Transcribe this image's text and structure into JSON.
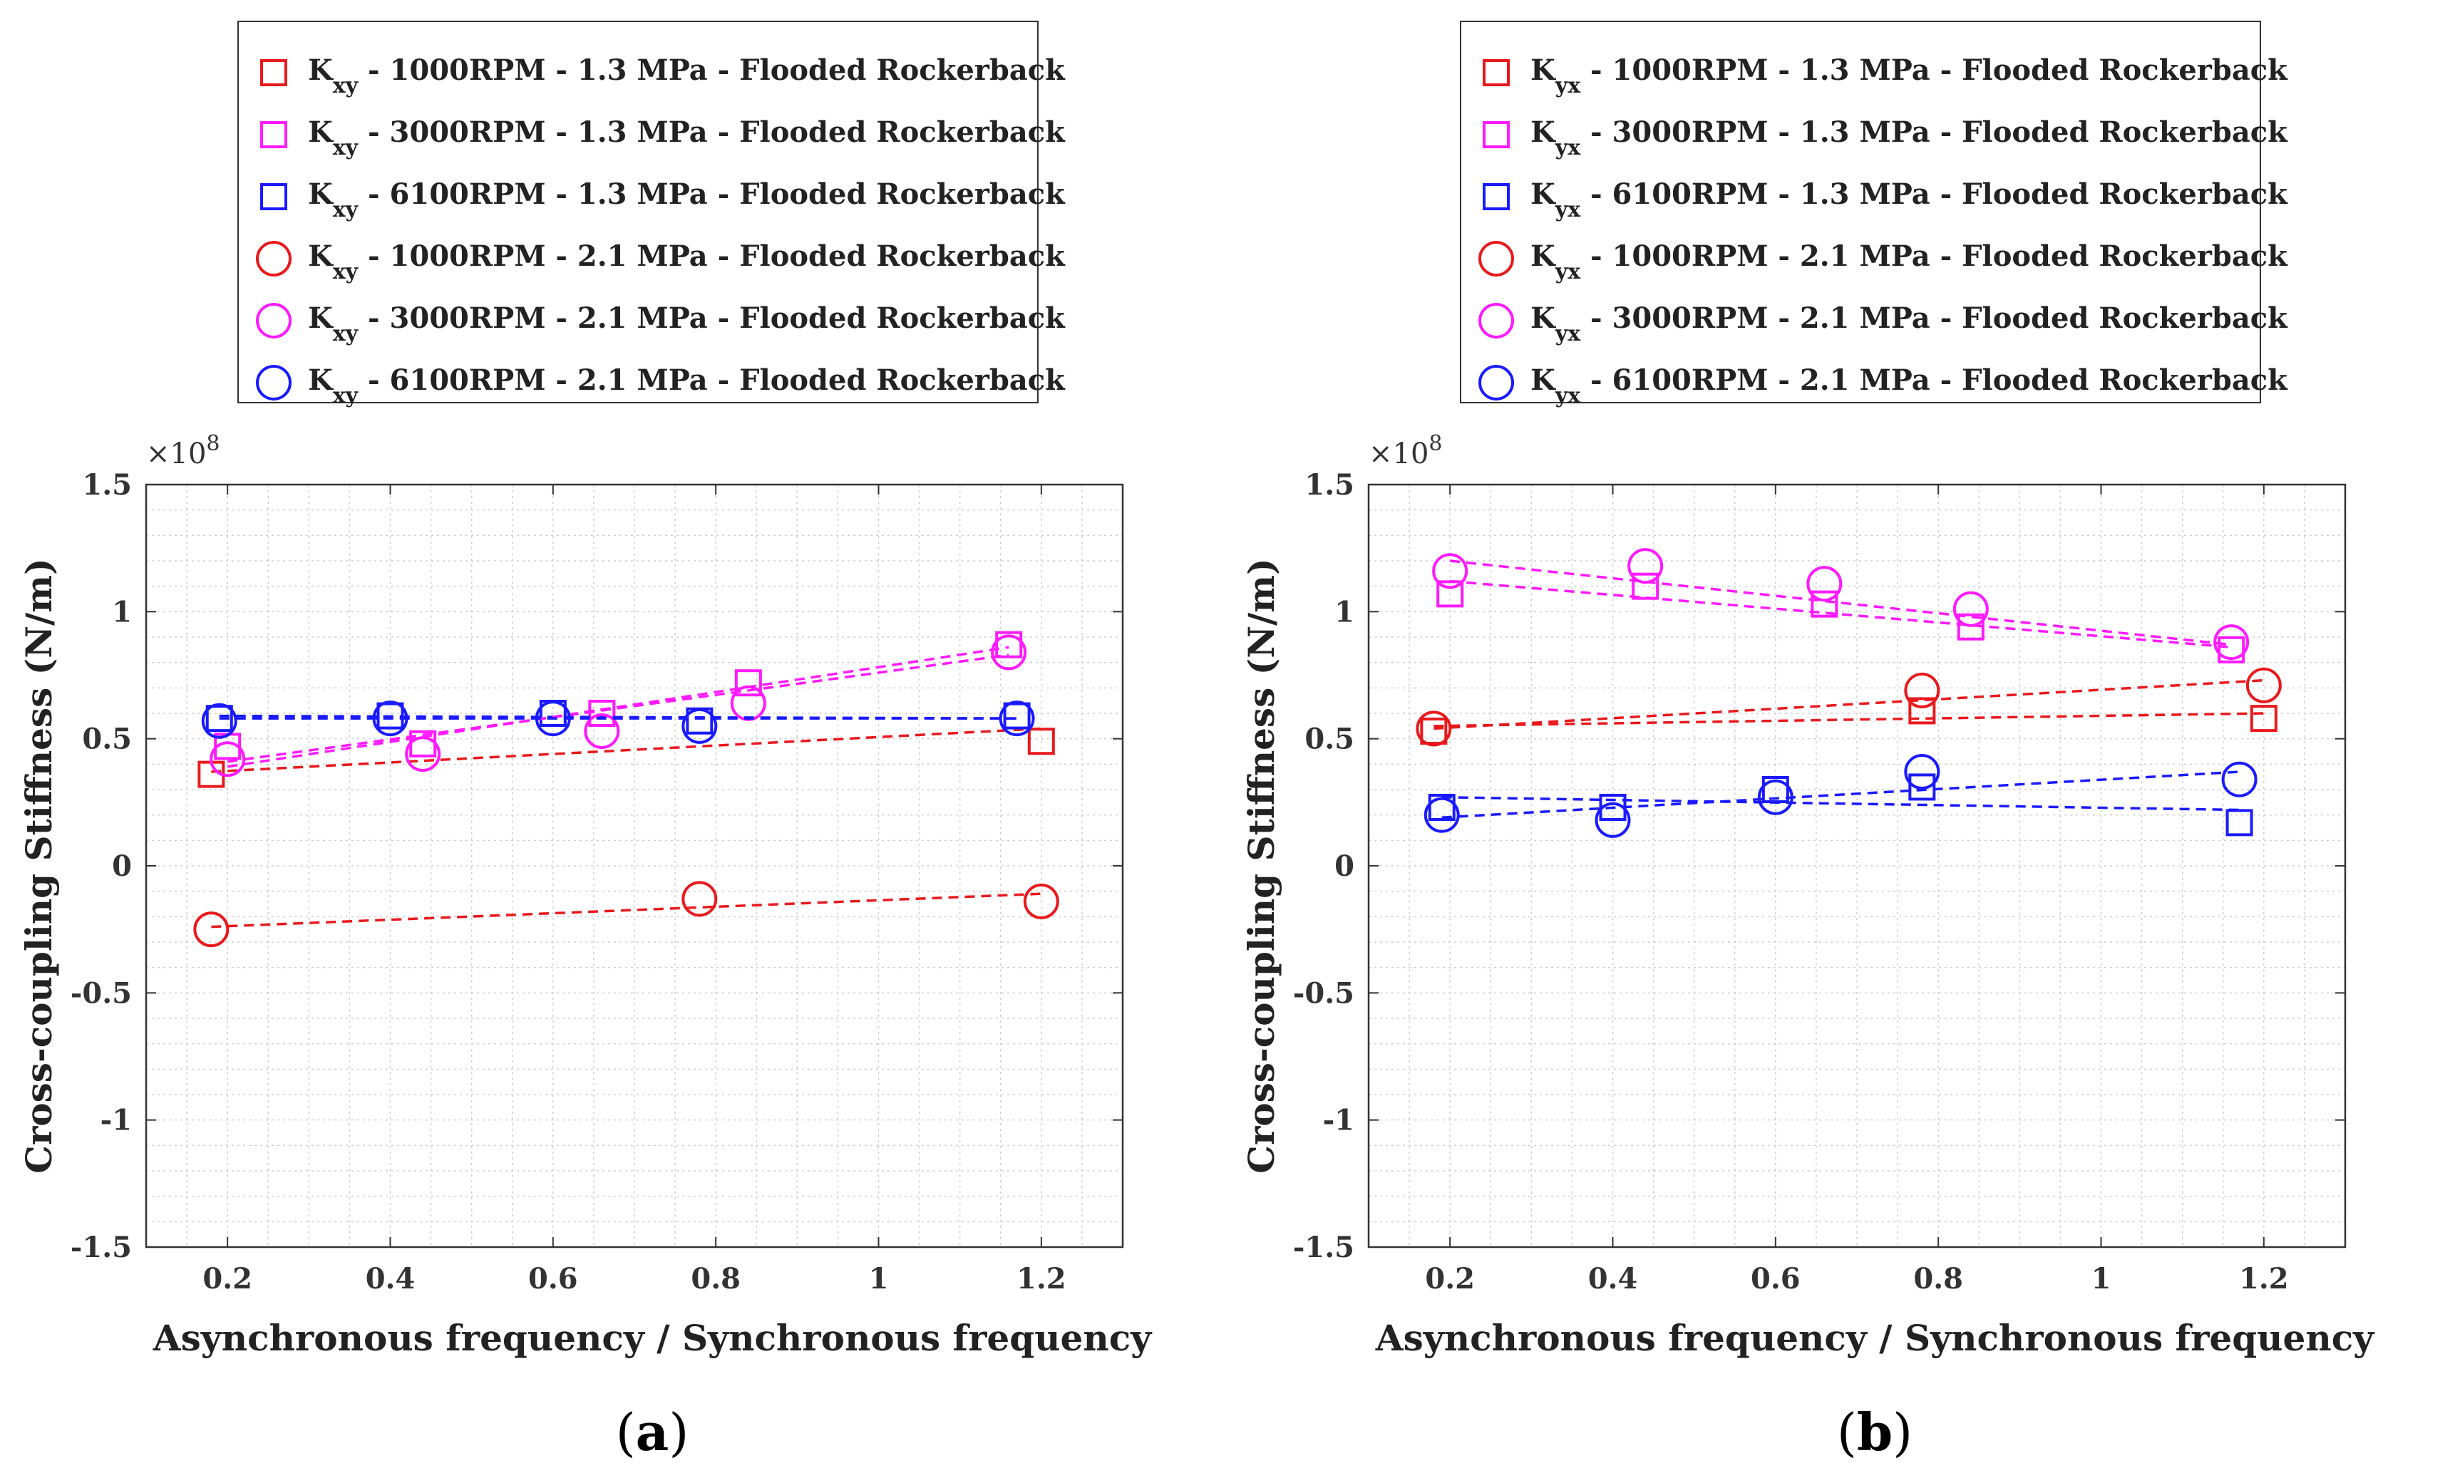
{
  "chart_data": [
    {
      "type": "scatter",
      "panel_label": "a",
      "xlabel": "Asynchronous frequency / Synchronous frequency",
      "ylabel": "Cross-coupling Stiffness (N/m)",
      "y_multiplier": "8",
      "xlim": [
        0.1,
        1.3
      ],
      "ylim": [
        -1.5,
        1.5
      ],
      "xticks": [
        "0.2",
        "0.4",
        "0.6",
        "0.8",
        "1",
        "1.2"
      ],
      "xtick_values": [
        0.2,
        0.4,
        0.6,
        0.8,
        1.0,
        1.2
      ],
      "yticks": [
        "1.5",
        "1",
        "0.5",
        "0",
        "-0.5",
        "-1",
        "-1.5"
      ],
      "ytick_values": [
        1.5,
        1.0,
        0.5,
        0.0,
        -0.5,
        -1.0,
        -1.5
      ],
      "grid": true,
      "legend_position": "top",
      "series": [
        {
          "name": "1000RPM - 1.3 MPa - Flooded Rockerback",
          "symbol": "K",
          "sub": "xy",
          "marker": "square",
          "color": "#e8191d",
          "x": [
            0.18,
            1.2
          ],
          "y": [
            0.36,
            0.49
          ],
          "fit": [
            0.37,
            0.54
          ]
        },
        {
          "name": "3000RPM - 1.3 MPa - Flooded Rockerback",
          "symbol": "K",
          "sub": "xy",
          "marker": "square",
          "color": "#ff1aff",
          "x": [
            0.2,
            0.44,
            0.66,
            0.84,
            1.16
          ],
          "y": [
            0.47,
            0.48,
            0.6,
            0.72,
            0.87
          ],
          "fit": [
            0.39,
            0.86
          ]
        },
        {
          "name": "6100RPM - 1.3 MPa - Flooded Rockerback",
          "symbol": "K",
          "sub": "xy",
          "marker": "square",
          "color": "#1a1aff",
          "x": [
            0.19,
            0.4,
            0.6,
            0.78,
            1.17
          ],
          "y": [
            0.58,
            0.59,
            0.6,
            0.57,
            0.59
          ],
          "fit": [
            0.59,
            0.58
          ]
        },
        {
          "name": "1000RPM - 2.1 MPa - Flooded Rockerback",
          "symbol": "K",
          "sub": "xy",
          "marker": "circle",
          "color": "#e8191d",
          "x": [
            0.18,
            0.78,
            1.2
          ],
          "y": [
            -0.25,
            -0.13,
            -0.14
          ],
          "fit": [
            -0.24,
            -0.11
          ]
        },
        {
          "name": "3000RPM - 2.1 MPa - Flooded Rockerback",
          "symbol": "K",
          "sub": "xy",
          "marker": "circle",
          "color": "#ff1aff",
          "x": [
            0.2,
            0.44,
            0.66,
            0.84,
            1.16
          ],
          "y": [
            0.42,
            0.44,
            0.53,
            0.64,
            0.84
          ],
          "fit": [
            0.41,
            0.83
          ]
        },
        {
          "name": "6100RPM - 2.1 MPa - Flooded Rockerback",
          "symbol": "K",
          "sub": "xy",
          "marker": "circle",
          "color": "#1a1aff",
          "x": [
            0.19,
            0.4,
            0.6,
            0.78,
            1.17
          ],
          "y": [
            0.57,
            0.58,
            0.58,
            0.55,
            0.58
          ],
          "fit": [
            0.58,
            0.58
          ]
        }
      ]
    },
    {
      "type": "scatter",
      "panel_label": "b",
      "xlabel": "Asynchronous frequency / Synchronous frequency",
      "ylabel": "Cross-coupling Stiffness (N/m)",
      "y_multiplier": "8",
      "xlim": [
        0.1,
        1.3
      ],
      "ylim": [
        -1.5,
        1.5
      ],
      "xticks": [
        "0.2",
        "0.4",
        "0.6",
        "0.8",
        "1",
        "1.2"
      ],
      "xtick_values": [
        0.2,
        0.4,
        0.6,
        0.8,
        1.0,
        1.2
      ],
      "yticks": [
        "1.5",
        "1",
        "0.5",
        "0",
        "-0.5",
        "-1",
        "-1.5"
      ],
      "ytick_values": [
        1.5,
        1.0,
        0.5,
        0.0,
        -0.5,
        -1.0,
        -1.5
      ],
      "grid": true,
      "legend_position": "top",
      "series": [
        {
          "name": "1000RPM - 1.3 MPa - Flooded Rockerback",
          "symbol": "K",
          "sub": "yx",
          "marker": "square",
          "color": "#e8191d",
          "x": [
            0.18,
            0.78,
            1.2
          ],
          "y": [
            0.53,
            0.61,
            0.58
          ],
          "fit": [
            0.55,
            0.6
          ]
        },
        {
          "name": "3000RPM - 1.3 MPa - Flooded Rockerback",
          "symbol": "K",
          "sub": "yx",
          "marker": "square",
          "color": "#ff1aff",
          "x": [
            0.2,
            0.44,
            0.66,
            0.84,
            1.16
          ],
          "y": [
            1.07,
            1.1,
            1.03,
            0.94,
            0.85
          ],
          "fit": [
            1.12,
            0.86
          ]
        },
        {
          "name": "6100RPM - 1.3 MPa - Flooded Rockerback",
          "symbol": "K",
          "sub": "yx",
          "marker": "square",
          "color": "#1a1aff",
          "x": [
            0.19,
            0.4,
            0.6,
            0.78,
            1.17
          ],
          "y": [
            0.23,
            0.23,
            0.3,
            0.31,
            0.17
          ],
          "fit": [
            0.27,
            0.22
          ]
        },
        {
          "name": "1000RPM - 2.1 MPa - Flooded Rockerback",
          "symbol": "K",
          "sub": "yx",
          "marker": "circle",
          "color": "#e8191d",
          "x": [
            0.18,
            0.78,
            1.2
          ],
          "y": [
            0.54,
            0.69,
            0.71
          ],
          "fit": [
            0.54,
            0.73
          ]
        },
        {
          "name": "3000RPM - 2.1 MPa - Flooded Rockerback",
          "symbol": "K",
          "sub": "yx",
          "marker": "circle",
          "color": "#ff1aff",
          "x": [
            0.2,
            0.44,
            0.66,
            0.84,
            1.16
          ],
          "y": [
            1.16,
            1.18,
            1.11,
            1.01,
            0.88
          ],
          "fit": [
            1.2,
            0.87
          ]
        },
        {
          "name": "6100RPM - 2.1 MPa - Flooded Rockerback",
          "symbol": "K",
          "sub": "yx",
          "marker": "circle",
          "color": "#1a1aff",
          "x": [
            0.19,
            0.4,
            0.6,
            0.78,
            1.17
          ],
          "y": [
            0.2,
            0.18,
            0.27,
            0.37,
            0.34
          ],
          "fit": [
            0.19,
            0.37
          ]
        }
      ]
    }
  ]
}
